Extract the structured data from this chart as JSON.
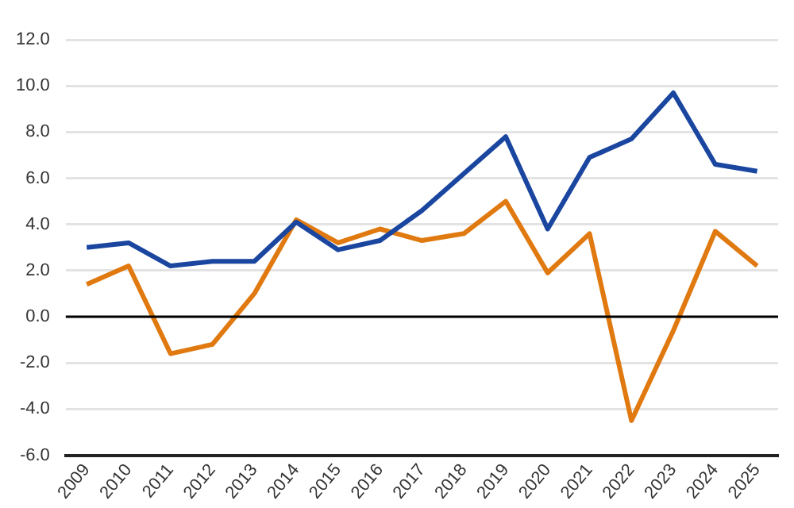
{
  "chart_data": {
    "type": "line",
    "categories": [
      "2009",
      "2010",
      "2011",
      "2012",
      "2013",
      "2014",
      "2015",
      "2016",
      "2017",
      "2018",
      "2019",
      "2020",
      "2021",
      "2022",
      "2023",
      "2024",
      "2025"
    ],
    "series": [
      {
        "color": "#1a46a0",
        "values": [
          3.0,
          3.2,
          2.2,
          2.4,
          2.4,
          4.1,
          2.9,
          3.3,
          4.6,
          6.2,
          7.8,
          3.8,
          6.9,
          7.7,
          9.7,
          6.6,
          6.3
        ]
      },
      {
        "color": "#e07a10",
        "values": [
          1.4,
          2.2,
          -1.6,
          -1.2,
          1.0,
          4.2,
          3.2,
          3.8,
          3.3,
          3.6,
          5.0,
          1.9,
          3.6,
          -4.5,
          -0.6,
          3.7,
          2.2
        ]
      }
    ],
    "ylim": [
      -6,
      12
    ],
    "yticks": [
      {
        "value": -6,
        "label": "-6.0"
      },
      {
        "value": -4,
        "label": "-4.0"
      },
      {
        "value": -2,
        "label": "-2.0"
      },
      {
        "value": 0,
        "label": "0.0"
      },
      {
        "value": 2,
        "label": "2.0"
      },
      {
        "value": 4,
        "label": "4.0"
      },
      {
        "value": 6,
        "label": "6.0"
      },
      {
        "value": 8,
        "label": "8.0"
      },
      {
        "value": 10,
        "label": "10.0"
      },
      {
        "value": 12,
        "label": "12.0"
      }
    ],
    "grid": "y",
    "legend": false,
    "marker": "none",
    "line_style": "solid",
    "ref_lines": [
      {
        "axis": "y",
        "value": 0,
        "color": "#000000"
      }
    ]
  }
}
